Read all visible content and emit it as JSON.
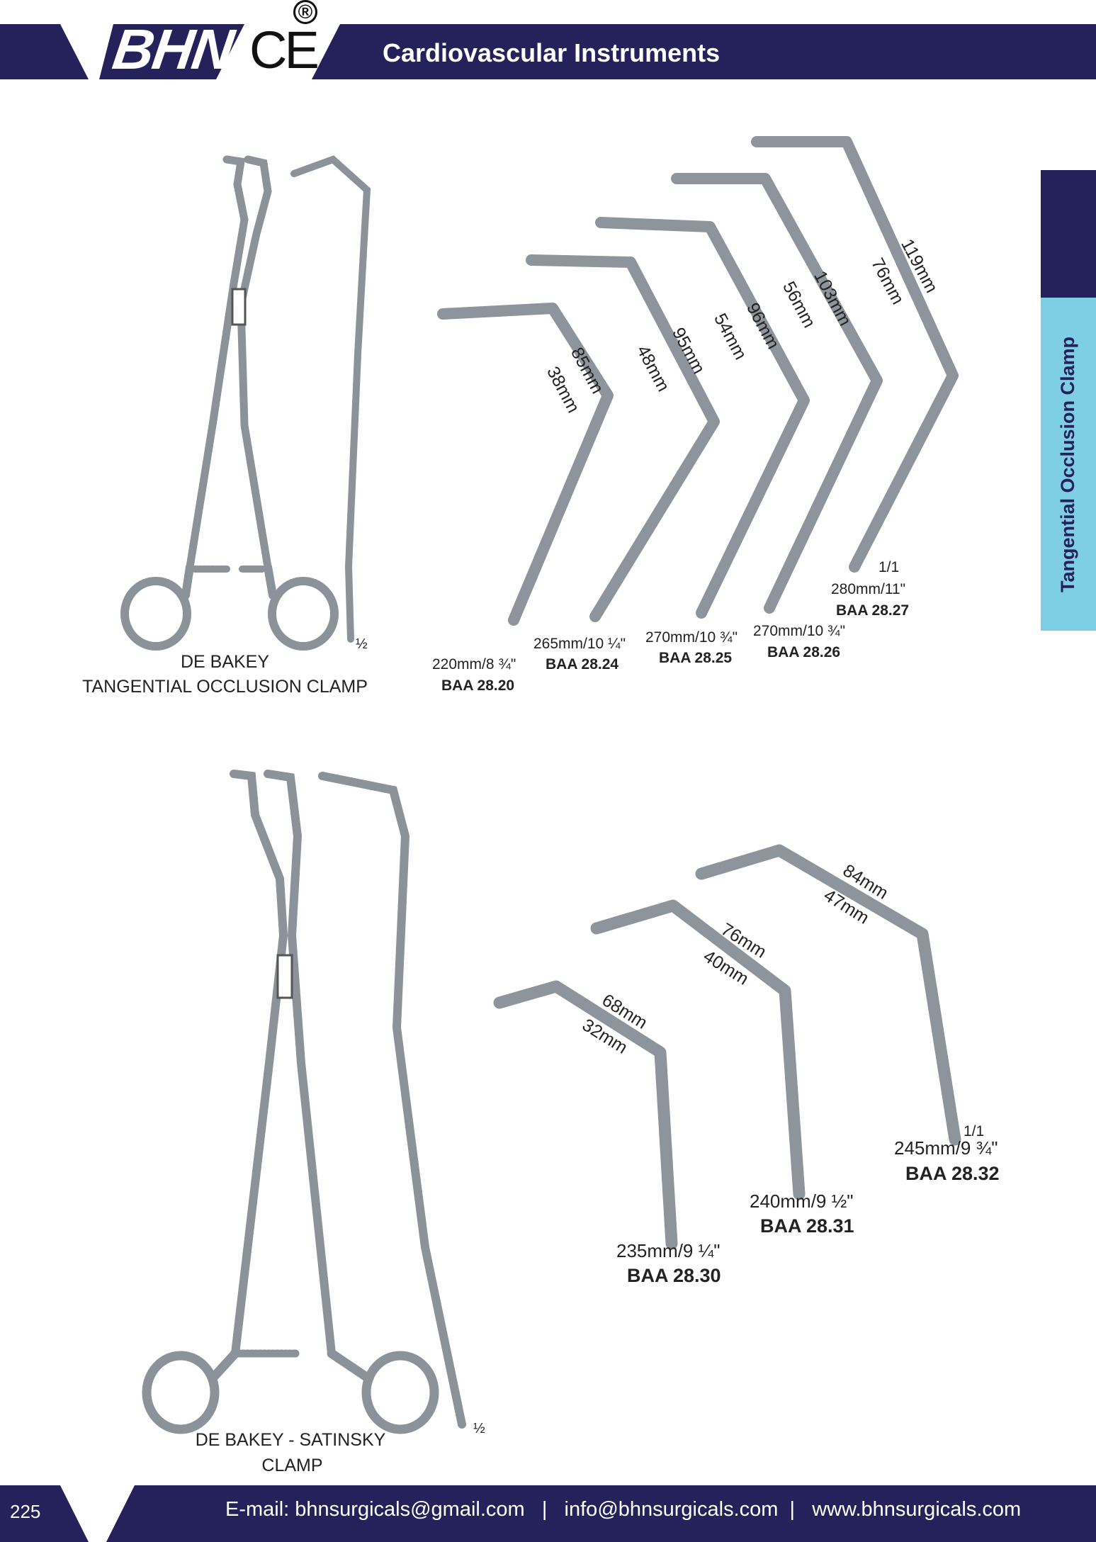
{
  "header": {
    "logo": "BHN",
    "ce_mark": "CE",
    "registered": "®",
    "title": "Cardiovascular Instruments",
    "color": "#25215a"
  },
  "side_tab": {
    "label": "Tangential Occlusion Clamp",
    "dark_color": "#25215a",
    "light_color": "#7ecfe6"
  },
  "section1": {
    "caption_line1": "DE BAKEY",
    "caption_line2": "TANGENTIAL OCCLUSION CLAMP",
    "scale_label": "½",
    "items": [
      {
        "size": "220mm/8 ¾\"",
        "code": "BAA 28.20",
        "dim_outer": "85mm",
        "dim_inner": "38mm"
      },
      {
        "size": "265mm/10 ¼\"",
        "code": "BAA 28.24",
        "dim_outer": "95mm",
        "dim_inner": "48mm"
      },
      {
        "size": "270mm/10 ¾\"",
        "code": "BAA 28.25",
        "dim_outer": "96mm",
        "dim_inner": "54mm"
      },
      {
        "size": "270mm/10 ¾\"",
        "code": "BAA 28.26",
        "dim_outer": "103mm",
        "dim_inner": "56mm"
      },
      {
        "size": "280mm/11\"",
        "code": "BAA 28.27",
        "dim_outer": "119mm",
        "dim_inner": "76mm",
        "scale": "1/1"
      }
    ]
  },
  "section2": {
    "caption_line1": "DE BAKEY - SATINSKY",
    "caption_line2": "CLAMP",
    "scale_label": "½",
    "items": [
      {
        "size": "235mm/9 ¼\"",
        "code": "BAA 28.30",
        "dim_outer": "68mm",
        "dim_inner": "32mm"
      },
      {
        "size": "240mm/9 ½\"",
        "code": "BAA 28.31",
        "dim_outer": "76mm",
        "dim_inner": "40mm"
      },
      {
        "size": "245mm/9 ¾\"",
        "code": "BAA 28.32",
        "dim_outer": "84mm",
        "dim_inner": "47mm",
        "scale": "1/1"
      }
    ]
  },
  "footer": {
    "page_number": "225",
    "contact": "E-mail: bhnsurgicals@gmail.com   |   info@bhnsurgicals.com  |   www.bhnsurgicals.com"
  }
}
